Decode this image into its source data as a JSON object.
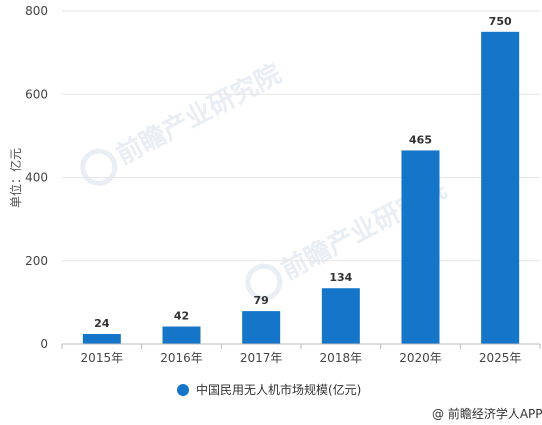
{
  "chart_data": {
    "type": "bar",
    "categories": [
      "2015年",
      "2016年",
      "2017年",
      "2018年",
      "2020年",
      "2025年"
    ],
    "series": [
      {
        "name": "中国民用无人机市场规模(亿元)",
        "values": [
          24,
          42,
          79,
          134,
          465,
          750
        ],
        "color": "#1576c9"
      }
    ],
    "ylabel": "单位：亿元",
    "ylim": [
      0,
      800
    ],
    "yticks": [
      0,
      200,
      400,
      600,
      800
    ],
    "grid": true,
    "legend_position": "bottom",
    "data_labels": [
      "24",
      "42",
      "79",
      "134",
      "465",
      "750"
    ]
  },
  "watermark": {
    "text": "前瞻产业研究院"
  },
  "source": "@ 前瞻经济学人APP"
}
